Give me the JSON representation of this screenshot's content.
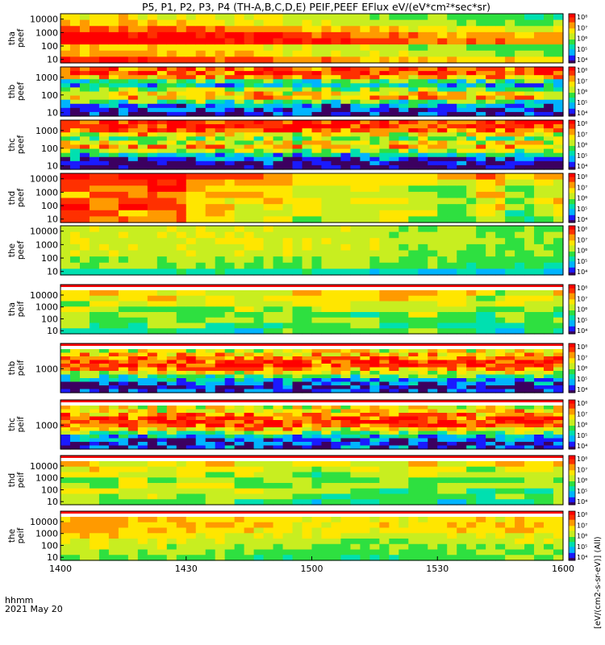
{
  "chart_data": {
    "type": "heatmap",
    "title": "P5, P1, P2, P3, P4 (TH-A,B,C,D,E) PEIF,PEEF EFlux eV/(eV*cm²*sec*sr)",
    "x_ticks": [
      "1400",
      "1430",
      "1500",
      "1530",
      "1600"
    ],
    "x_label": [
      "hhmm",
      "2021 May 20"
    ],
    "x_range": [
      "2021-05-20 14:00",
      "2021-05-20 16:00"
    ],
    "colorbar_label": "[eV/(cm2-s-sr-eV)] (All)",
    "colormap": [
      "#3c0060",
      "#1a1aff",
      "#00b4ff",
      "#00e0b0",
      "#2ee040",
      "#c8ee20",
      "#ffe600",
      "#ff9a00",
      "#ff3000",
      "#ff0000"
    ],
    "panels": [
      {
        "label": [
          "tha",
          "peef"
        ],
        "y_scale": "log",
        "y_ticks": [
          "10",
          "100",
          "1000",
          "10000"
        ],
        "cbar_ticks": [
          "10⁴",
          "10⁵",
          "10⁶",
          "10⁷",
          "10⁸"
        ],
        "white_bands": [],
        "pattern": "peef_a",
        "fill_rows": [
          5.9,
          4.7,
          4.3,
          6.9,
          6.4,
          5.4,
          4.4,
          4.1
        ],
        "time_trend": [
          1.2,
          1.2,
          1.1,
          1.0,
          0.9,
          0.8,
          0.7,
          0.5,
          0.3,
          0.1,
          0.0,
          -0.2,
          -0.4,
          -0.5,
          -0.6,
          -0.7
        ]
      },
      {
        "label": [
          "thb",
          "peef"
        ],
        "y_scale": "log",
        "y_ticks": [
          "10",
          "100",
          "1000"
        ],
        "cbar_ticks": [
          "10⁴",
          "10⁵",
          "10⁶",
          "10⁷",
          "10⁸"
        ],
        "white_bands": [],
        "pattern": "banded",
        "fill_rows": [
          1.0,
          1.3,
          2.3,
          3.9,
          6.0,
          5.7,
          4.4,
          2.8,
          3.8,
          6.4,
          7.3,
          7.2
        ],
        "time_trend": [
          0,
          0,
          0,
          0,
          0,
          0,
          0,
          0,
          0,
          0,
          0,
          0,
          0,
          0,
          0,
          0
        ]
      },
      {
        "label": [
          "thc",
          "peef"
        ],
        "y_scale": "log",
        "y_ticks": [
          "10",
          "100",
          "1000"
        ],
        "cbar_ticks": [
          "10⁴",
          "10⁵",
          "10⁶",
          "10⁷",
          "10⁸"
        ],
        "white_bands": [],
        "pattern": "banded",
        "fill_rows": [
          0.4,
          0.8,
          1.6,
          3.0,
          4.8,
          6.0,
          5.4,
          4.1,
          5.6,
          7.2,
          7.4,
          7.5
        ],
        "time_trend": [
          0,
          0,
          0,
          0,
          0,
          0,
          0,
          0,
          0,
          0,
          0,
          0,
          0,
          0,
          0,
          0
        ]
      },
      {
        "label": [
          "thd",
          "peef"
        ],
        "y_scale": "log",
        "y_ticks": [
          "10",
          "100",
          "1000",
          "10000"
        ],
        "cbar_ticks": [
          "10⁴",
          "10⁵",
          "10⁶",
          "10⁷",
          "10⁸"
        ],
        "white_bands": [],
        "pattern": "blocky",
        "fill_rows": [
          5.2,
          5.0,
          5.6,
          5.4,
          5.3,
          5.5,
          5.8,
          6.3
        ],
        "time_trend": [
          1.4,
          1.6,
          1.5,
          1.4,
          0.3,
          0.2,
          0.0,
          -0.3,
          -0.4,
          -0.6,
          -0.2,
          -0.5,
          -0.8,
          0.2,
          -1.2,
          -0.3
        ]
      },
      {
        "label": [
          "the",
          "peef"
        ],
        "y_scale": "log",
        "y_ticks": [
          "10",
          "100",
          "1000",
          "10000"
        ],
        "cbar_ticks": [
          "10⁴",
          "10⁵",
          "10⁶",
          "10⁷",
          "10⁸"
        ],
        "white_bands": [],
        "pattern": "smooth",
        "fill_rows": [
          2.6,
          3.8,
          4.0,
          4.3,
          4.4,
          4.5,
          4.4,
          4.3
        ],
        "time_trend": [
          0.2,
          0.2,
          0.2,
          0.3,
          0.3,
          0.3,
          0.3,
          0.3,
          0.2,
          0.0,
          -0.1,
          -0.2,
          -0.3,
          -0.3,
          -0.4,
          -0.4
        ]
      },
      {
        "label": [
          "tha",
          "peif"
        ],
        "y_scale": "log",
        "y_ticks": [
          "10",
          "100",
          "1000",
          "10000"
        ],
        "cbar_ticks": [
          "10⁴",
          "10⁵",
          "10⁶",
          "10⁷",
          "10⁸"
        ],
        "white_bands": [
          "top"
        ],
        "pattern": "blocky",
        "fill_rows": [
          3.2,
          3.6,
          3.9,
          4.1,
          4.4,
          4.8,
          5.2,
          5.3
        ],
        "time_trend": [
          0.2,
          0.3,
          0.2,
          0.1,
          0.0,
          0.1,
          0.0,
          0.2,
          0.4,
          -0.2,
          0.3,
          0.5,
          0.3,
          -0.4,
          -0.2,
          0.0
        ]
      },
      {
        "label": [
          "thb",
          "peif"
        ],
        "y_scale": "log",
        "y_ticks": [
          "1000"
        ],
        "cbar_ticks": [
          "10⁴",
          "10⁵",
          "10⁶",
          "10⁷",
          "10⁸"
        ],
        "white_bands": [
          "top"
        ],
        "pattern": "banded",
        "fill_rows": [
          1.3,
          1.1,
          1.6,
          2.6,
          3.8,
          5.3,
          6.4,
          7.3,
          7.4,
          6.8,
          6.0,
          5.4
        ],
        "time_trend": [
          0,
          0,
          0,
          0,
          0,
          0,
          0,
          0,
          0,
          0,
          0,
          0,
          0,
          0,
          0,
          0
        ]
      },
      {
        "label": [
          "thc",
          "peif"
        ],
        "y_scale": "log",
        "y_ticks": [
          "1000"
        ],
        "cbar_ticks": [
          "10⁴",
          "10⁵",
          "10⁶",
          "10⁷",
          "10⁸"
        ],
        "white_bands": [
          "top"
        ],
        "pattern": "banded",
        "fill_rows": [
          1.6,
          1.2,
          1.7,
          2.8,
          4.2,
          5.8,
          6.9,
          7.5,
          7.3,
          6.5,
          5.8,
          5.2
        ],
        "time_trend": [
          0,
          0,
          0,
          0,
          0,
          0,
          0,
          0,
          0,
          0,
          0,
          0,
          0,
          0,
          0,
          0
        ]
      },
      {
        "label": [
          "thd",
          "peif"
        ],
        "y_scale": "log",
        "y_ticks": [
          "10",
          "100",
          "1000",
          "10000"
        ],
        "cbar_ticks": [
          "10⁴",
          "10⁵",
          "10⁶",
          "10⁷",
          "10⁸"
        ],
        "white_bands": [
          "top"
        ],
        "pattern": "blocky",
        "fill_rows": [
          3.6,
          4.2,
          4.3,
          4.4,
          4.5,
          4.6,
          5.1,
          5.5
        ],
        "time_trend": [
          0.3,
          0.2,
          0.1,
          0.0,
          0.2,
          0.1,
          0.0,
          -0.1,
          -0.5,
          -0.2,
          -0.3,
          -0.1,
          -0.2,
          -0.4,
          -0.2,
          -0.1
        ]
      },
      {
        "label": [
          "the",
          "peif"
        ],
        "y_scale": "log",
        "y_ticks": [
          "10",
          "100",
          "1000",
          "10000"
        ],
        "cbar_ticks": [
          "10⁴",
          "10⁵",
          "10⁶",
          "10⁷",
          "10⁸"
        ],
        "white_bands": [
          "top"
        ],
        "pattern": "smooth",
        "fill_rows": [
          3.8,
          4.0,
          4.3,
          4.6,
          5.0,
          5.5,
          5.6,
          5.4
        ],
        "time_trend": [
          0.3,
          0.3,
          0.2,
          0.1,
          0.0,
          -0.1,
          -0.2,
          -0.3,
          -0.4,
          -0.5,
          -0.4,
          -0.3,
          -0.2,
          -0.1,
          0.0,
          -0.1
        ]
      }
    ]
  }
}
